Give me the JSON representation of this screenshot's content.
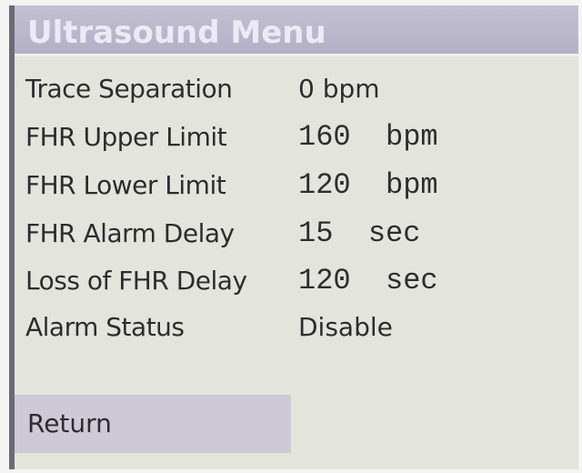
{
  "header": {
    "title": "Ultrasound Menu"
  },
  "menu": {
    "rows": [
      {
        "label": "Trace Separation",
        "value": "0 bpm"
      },
      {
        "label": "FHR Upper Limit",
        "value": "160  bpm"
      },
      {
        "label": "FHR Lower Limit",
        "value": "120  bpm"
      },
      {
        "label": "FHR Alarm Delay",
        "value": "15  sec"
      },
      {
        "label": "Loss of FHR Delay",
        "value": "120  sec"
      },
      {
        "label": "Alarm Status",
        "value": "Disable"
      }
    ]
  },
  "footer": {
    "return": "Return"
  }
}
